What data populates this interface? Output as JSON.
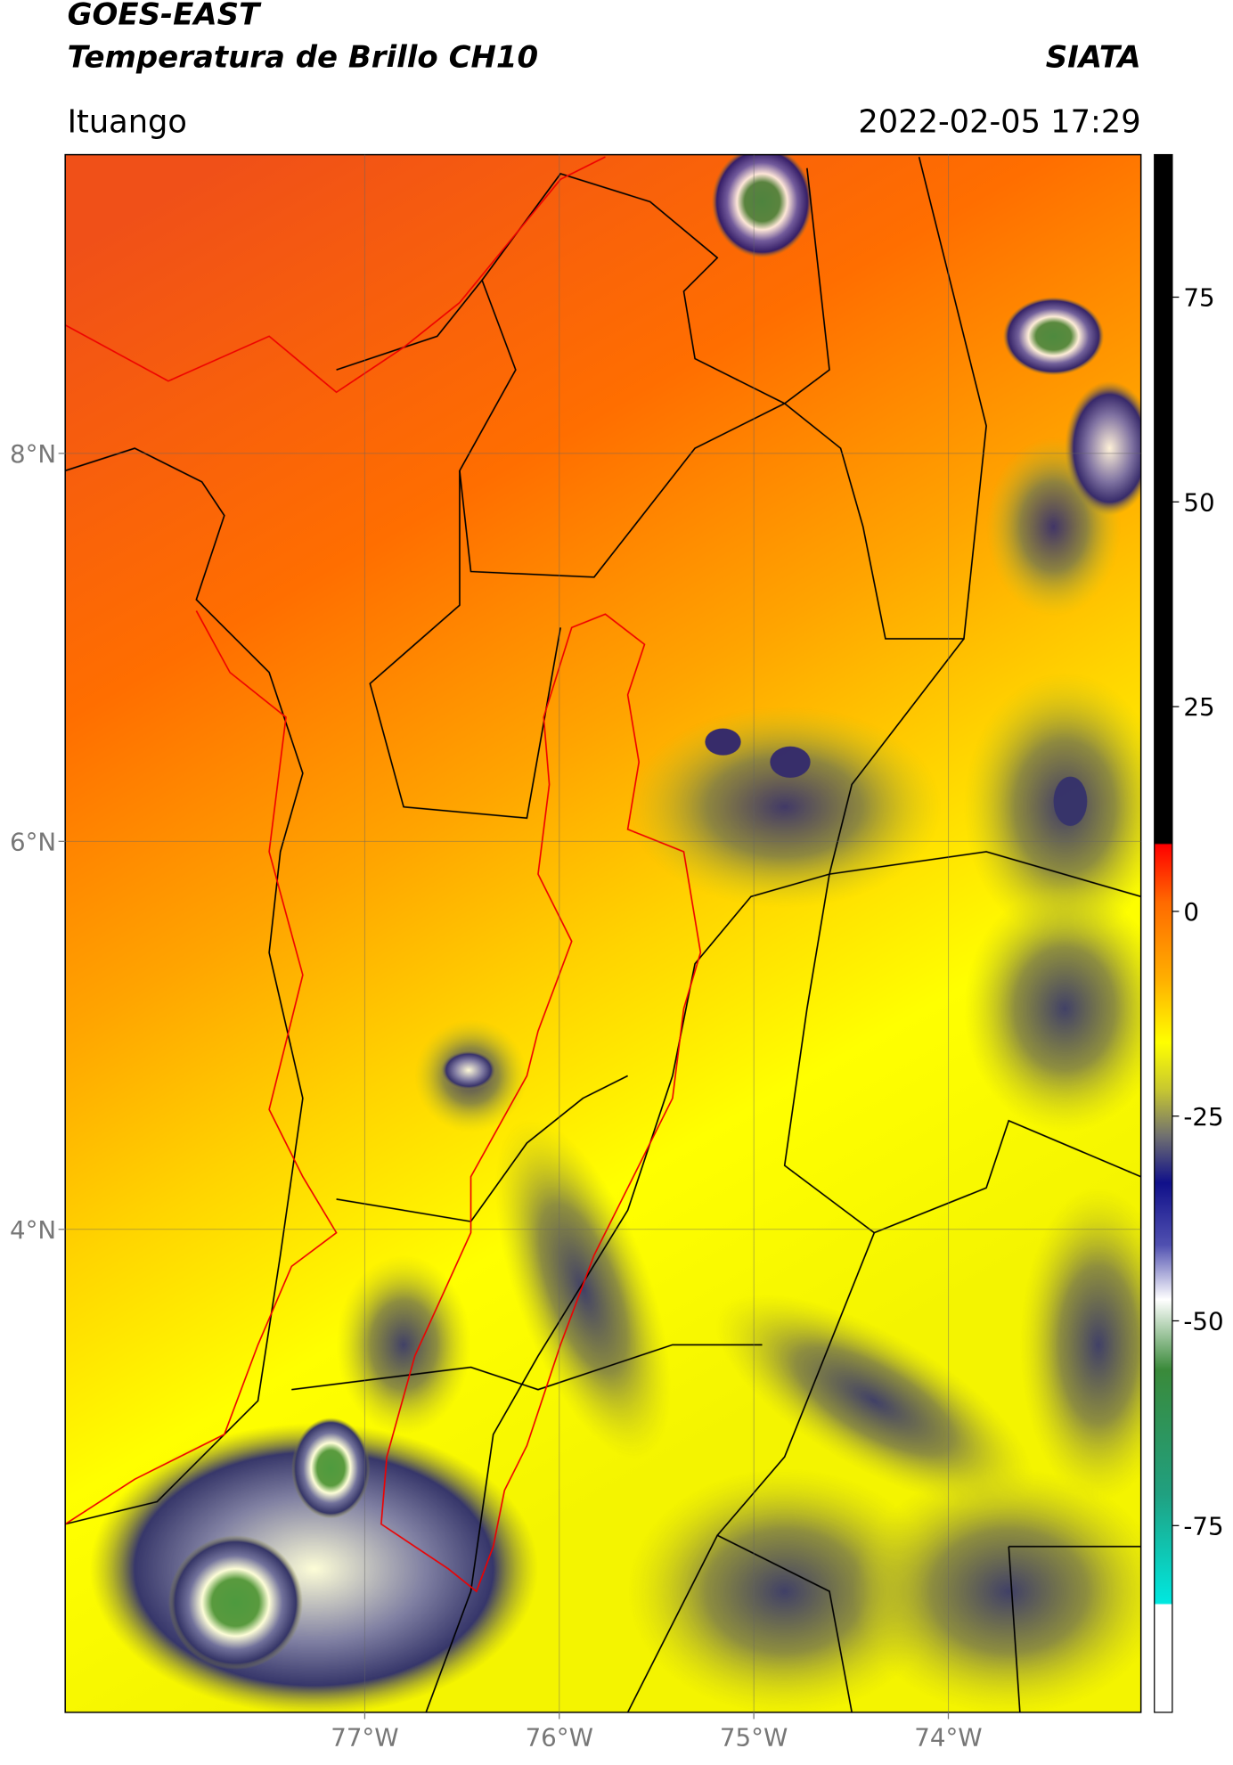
{
  "header": {
    "title": "GOES-EAST",
    "subtitle": "Temperatura de Brillo CH10",
    "source": "SIATA",
    "location": "Ituango",
    "datetime": "2022-02-05 17:29"
  },
  "map": {
    "xlim": [
      -78.54,
      -73.01
    ],
    "ylim": [
      1.51,
      9.54
    ],
    "xticks": [
      {
        "value": -77,
        "label": "77°W"
      },
      {
        "value": -76,
        "label": "76°W"
      },
      {
        "value": -75,
        "label": "75°W"
      },
      {
        "value": -74,
        "label": "74°W"
      }
    ],
    "yticks": [
      {
        "value": 4,
        "label": "4°N"
      },
      {
        "value": 6,
        "label": "6°N"
      },
      {
        "value": 8,
        "label": "8°N"
      }
    ],
    "grid": true
  },
  "colorbar": {
    "lim": [
      -97.8,
      92.4
    ],
    "ticks": [
      -75,
      -50,
      -25,
      0,
      25,
      50,
      75
    ]
  }
}
